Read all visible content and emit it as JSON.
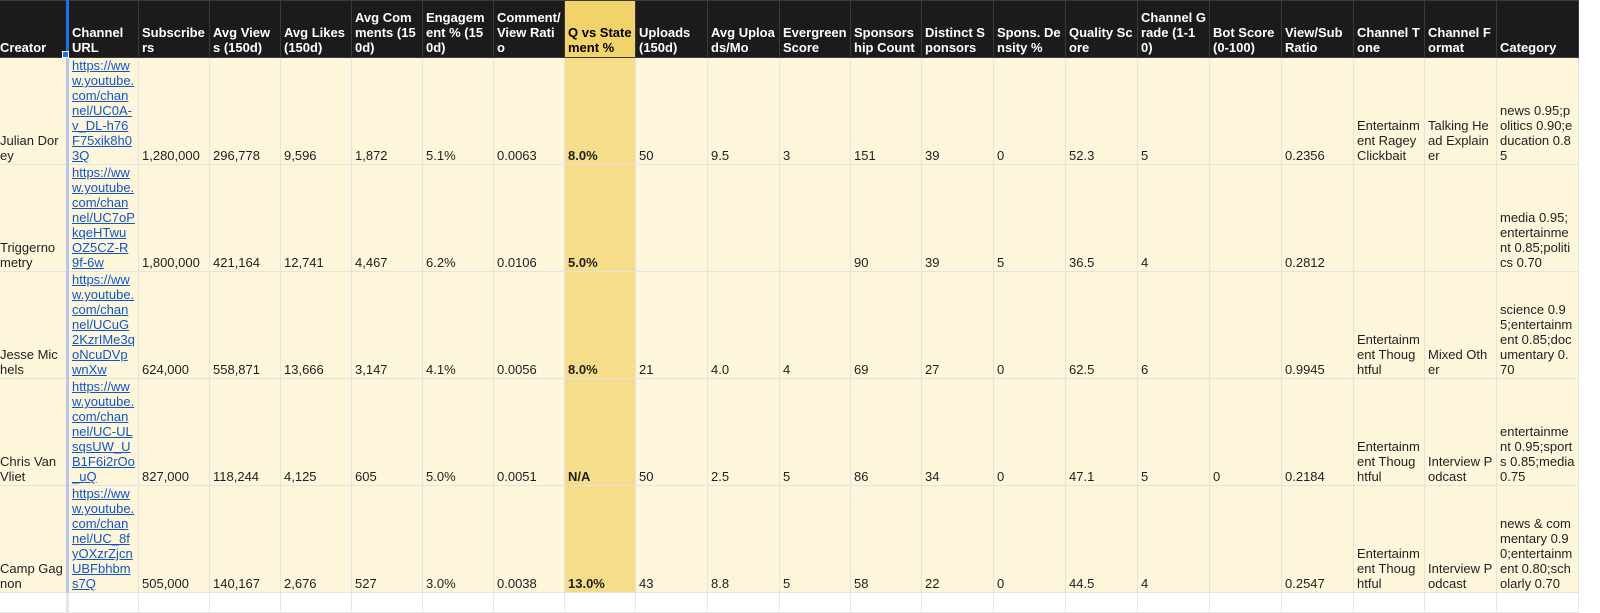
{
  "headers": [
    "Creator",
    "Channel URL",
    "Subscribers",
    "Avg Views (150d)",
    "Avg Likes (150d)",
    "Avg Comments (150d)",
    "Engagement % (150d)",
    "Comment/ View Ratio",
    "Q vs Statement %",
    "Uploads (150d)",
    "Avg Uploads/Mo",
    "Evergreen Score",
    "Sponsorship Count",
    "Distinct Sponsors",
    "Spons. Density %",
    "Quality Score",
    "Channel Grade (1-10)",
    "Bot Score (0-100)",
    "View/Sub Ratio",
    "Channel Tone",
    "Channel Format",
    "Category"
  ],
  "rows": [
    {
      "creator": "Julian Dorey",
      "url": "https://www.youtube.com/channel/UC0A-v_DL-h76F75xik8h03Q",
      "subscribers": "1,280,000",
      "avg_views": "296,778",
      "avg_likes": "9,596",
      "avg_comments": "1,872",
      "engagement": "5.1%",
      "comment_view": "0.0063",
      "q_vs_statement": "8.0%",
      "uploads": "50",
      "avg_uploads_mo": "9.5",
      "evergreen": "3",
      "sponsorship_count": "151",
      "distinct_sponsors": "39",
      "spons_density": "0",
      "quality": "52.3",
      "grade": "5",
      "bot_score": "",
      "view_sub": "0.2356",
      "tone": "Entertainment Ragey Clickbait",
      "format": "Talking Head Explainer",
      "category": "news 0.95;politics 0.90;education 0.85"
    },
    {
      "creator": "Triggernometry",
      "url": "https://www.youtube.com/channel/UC7oPkqeHTwuOZ5CZ-R9f-6w",
      "subscribers": "1,800,000",
      "avg_views": "421,164",
      "avg_likes": "12,741",
      "avg_comments": "4,467",
      "engagement": "6.2%",
      "comment_view": "0.0106",
      "q_vs_statement": "5.0%",
      "uploads": "",
      "avg_uploads_mo": "",
      "evergreen": "",
      "sponsorship_count": "90",
      "distinct_sponsors": "39",
      "spons_density": "5",
      "quality": "36.5",
      "grade": "4",
      "bot_score": "",
      "view_sub": "0.2812",
      "tone": "",
      "format": "",
      "category": "media 0.95;entertainment 0.85;politics 0.70"
    },
    {
      "creator": "Jesse Michels",
      "url": "https://www.youtube.com/channel/UCuG2KzrIMe3qoNcuDVpwnXw",
      "subscribers": "624,000",
      "avg_views": "558,871",
      "avg_likes": "13,666",
      "avg_comments": "3,147",
      "engagement": "4.1%",
      "comment_view": "0.0056",
      "q_vs_statement": "8.0%",
      "uploads": "21",
      "avg_uploads_mo": "4.0",
      "evergreen": "4",
      "sponsorship_count": "69",
      "distinct_sponsors": "27",
      "spons_density": "0",
      "quality": "62.5",
      "grade": "6",
      "bot_score": "",
      "view_sub": "0.9945",
      "tone": "Entertainment Thoughtful",
      "format": "Mixed Other",
      "category": "science 0.95;entertainment 0.85;documentary 0.70"
    },
    {
      "creator": "Chris Van Vliet",
      "url": "https://www.youtube.com/channel/UC-ULsqsUW_UB1F6i2rOo_uQ",
      "subscribers": "827,000",
      "avg_views": "118,244",
      "avg_likes": "4,125",
      "avg_comments": "605",
      "engagement": "5.0%",
      "comment_view": "0.0051",
      "q_vs_statement": "N/A",
      "uploads": "50",
      "avg_uploads_mo": "2.5",
      "evergreen": "5",
      "sponsorship_count": "86",
      "distinct_sponsors": "34",
      "spons_density": "0",
      "quality": "47.1",
      "grade": "5",
      "bot_score": "0",
      "view_sub": "0.2184",
      "tone": "Entertainment Thoughtful",
      "format": "Interview Podcast",
      "category": "entertainment 0.95;sports 0.85;media 0.75"
    },
    {
      "creator": "Camp Gagnon",
      "url": "https://www.youtube.com/channel/UC_8fyOXzrZjcnUBFbhbms7Q",
      "subscribers": "505,000",
      "avg_views": "140,167",
      "avg_likes": "2,676",
      "avg_comments": "527",
      "engagement": "3.0%",
      "comment_view": "0.0038",
      "q_vs_statement": "13.0%",
      "uploads": "43",
      "avg_uploads_mo": "8.8",
      "evergreen": "5",
      "sponsorship_count": "58",
      "distinct_sponsors": "22",
      "spons_density": "0",
      "quality": "44.5",
      "grade": "4",
      "bot_score": "",
      "view_sub": "0.2547",
      "tone": "Entertainment Thoughtful",
      "format": "Interview Podcast",
      "category": "news & commentary 0.90;entertainment 0.80;scholarly 0.70"
    }
  ]
}
